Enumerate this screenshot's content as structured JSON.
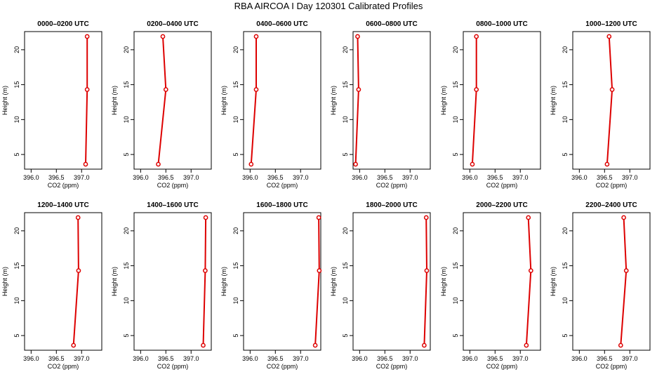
{
  "page": {
    "title": "RBA AIRCOA I  Day 120301  Calibrated Profiles"
  },
  "style": {
    "line_color": "#dd0000",
    "marker_color": "#dd0000",
    "axis_color": "#000000"
  },
  "chart_data": [
    {
      "type": "line",
      "title": "0000–0200 UTC",
      "xlabel": "CO2 (ppm)",
      "ylabel": "Height (m)",
      "xticks": [
        "396.0",
        "396.5",
        "397.0"
      ],
      "yticks": [
        "5",
        "10",
        "15",
        "20"
      ],
      "xlim": [
        395.87,
        397.4
      ],
      "ylim": [
        2.9,
        22.6
      ],
      "series": [
        {
          "x": [
            397.08,
            397.11,
            397.11
          ],
          "y": [
            3.6,
            14.3,
            21.9
          ]
        }
      ]
    },
    {
      "type": "line",
      "title": "0200–0400 UTC",
      "xlabel": "CO2 (ppm)",
      "ylabel": "Height (m)",
      "xticks": [
        "396.0",
        "396.5",
        "397.0"
      ],
      "yticks": [
        "5",
        "10",
        "15",
        "20"
      ],
      "xlim": [
        395.87,
        397.4
      ],
      "ylim": [
        2.9,
        22.6
      ],
      "series": [
        {
          "x": [
            396.35,
            396.5,
            396.44
          ],
          "y": [
            3.6,
            14.3,
            21.9
          ]
        }
      ]
    },
    {
      "type": "line",
      "title": "0400–0600 UTC",
      "xlabel": "CO2 (ppm)",
      "ylabel": "Height (m)",
      "xticks": [
        "396.0",
        "396.5",
        "397.0"
      ],
      "yticks": [
        "5",
        "10",
        "15",
        "20"
      ],
      "xlim": [
        395.87,
        397.4
      ],
      "ylim": [
        2.9,
        22.6
      ],
      "series": [
        {
          "x": [
            396.02,
            396.12,
            396.12
          ],
          "y": [
            3.6,
            14.3,
            21.9
          ]
        }
      ]
    },
    {
      "type": "line",
      "title": "0600–0800 UTC",
      "xlabel": "CO2 (ppm)",
      "ylabel": "Height (m)",
      "xticks": [
        "396.0",
        "396.5",
        "397.0"
      ],
      "yticks": [
        "5",
        "10",
        "15",
        "20"
      ],
      "xlim": [
        395.87,
        397.4
      ],
      "ylim": [
        2.9,
        22.6
      ],
      "series": [
        {
          "x": [
            395.92,
            395.98,
            395.96
          ],
          "y": [
            3.6,
            14.3,
            21.9
          ]
        }
      ]
    },
    {
      "type": "line",
      "title": "0800–1000 UTC",
      "xlabel": "CO2 (ppm)",
      "ylabel": "Height (m)",
      "xticks": [
        "396.0",
        "396.5",
        "397.0"
      ],
      "yticks": [
        "5",
        "10",
        "15",
        "20"
      ],
      "xlim": [
        395.87,
        397.4
      ],
      "ylim": [
        2.9,
        22.6
      ],
      "series": [
        {
          "x": [
            396.05,
            396.13,
            396.13
          ],
          "y": [
            3.6,
            14.3,
            21.9
          ]
        }
      ]
    },
    {
      "type": "line",
      "title": "1000–1200 UTC",
      "xlabel": "CO2 (ppm)",
      "ylabel": "Height (m)",
      "xticks": [
        "396.0",
        "396.5",
        "397.0"
      ],
      "yticks": [
        "5",
        "10",
        "15",
        "20"
      ],
      "xlim": [
        395.87,
        397.4
      ],
      "ylim": [
        2.9,
        22.6
      ],
      "series": [
        {
          "x": [
            396.55,
            396.65,
            396.59
          ],
          "y": [
            3.6,
            14.3,
            21.9
          ]
        }
      ]
    },
    {
      "type": "line",
      "title": "1200–1400 UTC",
      "xlabel": "CO2 (ppm)",
      "ylabel": "Height (m)",
      "xticks": [
        "396.0",
        "396.5",
        "397.0"
      ],
      "yticks": [
        "5",
        "10",
        "15",
        "20"
      ],
      "xlim": [
        395.87,
        397.4
      ],
      "ylim": [
        2.9,
        22.6
      ],
      "series": [
        {
          "x": [
            396.84,
            396.94,
            396.93
          ],
          "y": [
            3.6,
            14.3,
            21.9
          ]
        }
      ]
    },
    {
      "type": "line",
      "title": "1400–1600 UTC",
      "xlabel": "CO2 (ppm)",
      "ylabel": "Height (m)",
      "xticks": [
        "396.0",
        "396.5",
        "397.0"
      ],
      "yticks": [
        "5",
        "10",
        "15",
        "20"
      ],
      "xlim": [
        395.87,
        397.4
      ],
      "ylim": [
        2.9,
        22.6
      ],
      "series": [
        {
          "x": [
            397.24,
            397.28,
            397.29
          ],
          "y": [
            3.6,
            14.3,
            21.9
          ]
        }
      ]
    },
    {
      "type": "line",
      "title": "1600–1800 UTC",
      "xlabel": "CO2 (ppm)",
      "ylabel": "Height (m)",
      "xticks": [
        "396.0",
        "396.5",
        "397.0"
      ],
      "yticks": [
        "5",
        "10",
        "15",
        "20"
      ],
      "xlim": [
        395.87,
        397.4
      ],
      "ylim": [
        2.9,
        22.6
      ],
      "series": [
        {
          "x": [
            397.29,
            397.37,
            397.36
          ],
          "y": [
            3.6,
            14.3,
            21.9
          ]
        }
      ]
    },
    {
      "type": "line",
      "title": "1800–2000 UTC",
      "xlabel": "CO2 (ppm)",
      "ylabel": "Height (m)",
      "xticks": [
        "396.0",
        "396.5",
        "397.0"
      ],
      "yticks": [
        "5",
        "10",
        "15",
        "20"
      ],
      "xlim": [
        395.87,
        397.4
      ],
      "ylim": [
        2.9,
        22.6
      ],
      "series": [
        {
          "x": [
            397.28,
            397.33,
            397.32
          ],
          "y": [
            3.6,
            14.3,
            21.9
          ]
        }
      ]
    },
    {
      "type": "line",
      "title": "2000–2200 UTC",
      "xlabel": "CO2 (ppm)",
      "ylabel": "Height (m)",
      "xticks": [
        "396.0",
        "396.5",
        "397.0"
      ],
      "yticks": [
        "5",
        "10",
        "15",
        "20"
      ],
      "xlim": [
        395.87,
        397.4
      ],
      "ylim": [
        2.9,
        22.6
      ],
      "series": [
        {
          "x": [
            397.12,
            397.21,
            397.16
          ],
          "y": [
            3.6,
            14.3,
            21.9
          ]
        }
      ]
    },
    {
      "type": "line",
      "title": "2200–2400 UTC",
      "xlabel": "CO2 (ppm)",
      "ylabel": "Height (m)",
      "xticks": [
        "396.0",
        "396.5",
        "397.0"
      ],
      "yticks": [
        "5",
        "10",
        "15",
        "20"
      ],
      "xlim": [
        395.87,
        397.4
      ],
      "ylim": [
        2.9,
        22.6
      ],
      "series": [
        {
          "x": [
            396.82,
            396.93,
            396.88
          ],
          "y": [
            3.6,
            14.3,
            21.9
          ]
        }
      ]
    }
  ]
}
